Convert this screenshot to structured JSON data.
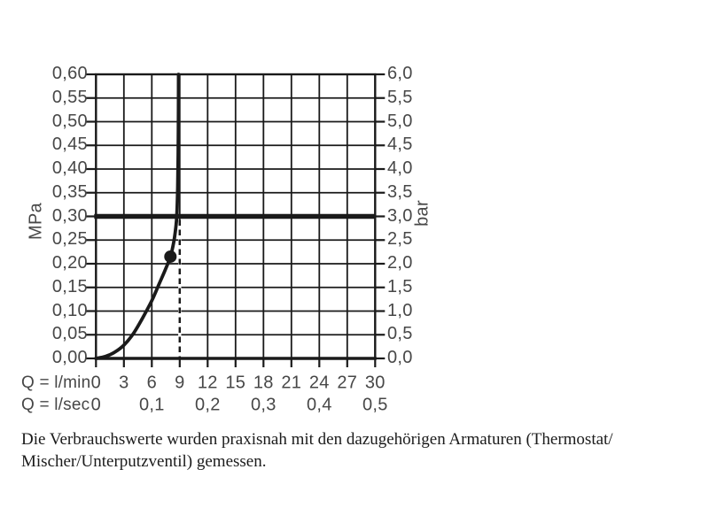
{
  "chart_data": {
    "type": "line",
    "y_left": {
      "unit": "MPa",
      "min": 0,
      "max": 0.6,
      "step": 0.05,
      "tick_labels": [
        "0,60",
        "0,55",
        "0,50",
        "0,45",
        "0,40",
        "0,35",
        "0,30",
        "0,25",
        "0,20",
        "0,15",
        "0,10",
        "0,05",
        "0,00"
      ]
    },
    "y_right": {
      "unit": "bar",
      "min": 0,
      "max": 6,
      "step": 0.5,
      "tick_labels": [
        "6,0",
        "5,5",
        "5,0",
        "4,5",
        "4,0",
        "3,5",
        "3,0",
        "2,5",
        "2,0",
        "1,5",
        "1,0",
        "0,5",
        "0,0"
      ]
    },
    "x_lmin": {
      "label": "Q = l/min",
      "min": 0,
      "max": 30,
      "step": 3,
      "tick_labels": [
        "0",
        "3",
        "6",
        "9",
        "12",
        "15",
        "18",
        "21",
        "24",
        "27",
        "30"
      ]
    },
    "x_lsec": {
      "label": "Q = l/sec",
      "ticks": [
        {
          "at_lmin": 0,
          "label": "0"
        },
        {
          "at_lmin": 6,
          "label": "0,1"
        },
        {
          "at_lmin": 12,
          "label": "0,2"
        },
        {
          "at_lmin": 18,
          "label": "0,3"
        },
        {
          "at_lmin": 24,
          "label": "0,4"
        },
        {
          "at_lmin": 30,
          "label": "0,5"
        }
      ]
    },
    "grid": true,
    "legend": "none",
    "pressure_reference_line_mpa": 0.3,
    "dashed_marker_lmin": 9,
    "operating_point": {
      "q_lmin": 8,
      "p_mpa": 0.215
    },
    "curve_points": [
      [
        0,
        0
      ],
      [
        1,
        0.004
      ],
      [
        2,
        0.013
      ],
      [
        3,
        0.028
      ],
      [
        4,
        0.052
      ],
      [
        5,
        0.085
      ],
      [
        6,
        0.122
      ],
      [
        6.8,
        0.158
      ],
      [
        7.4,
        0.185
      ],
      [
        8,
        0.215
      ],
      [
        8.35,
        0.245
      ],
      [
        8.55,
        0.272
      ],
      [
        8.68,
        0.3
      ],
      [
        8.78,
        0.36
      ],
      [
        8.83,
        0.43
      ],
      [
        8.86,
        0.52
      ],
      [
        8.87,
        0.6
      ]
    ],
    "colors": {
      "line": "#1a1a1a",
      "tick_label": "#474747",
      "caption_text": "#1b1b1b",
      "background": "#ffffff"
    }
  },
  "caption": {
    "lines": [
      "Die Verbrauchswerte wurden praxisnah mit den dazugehörigen Armaturen (Thermostat/",
      "Mischer/Unterputzventil) gemessen."
    ]
  }
}
